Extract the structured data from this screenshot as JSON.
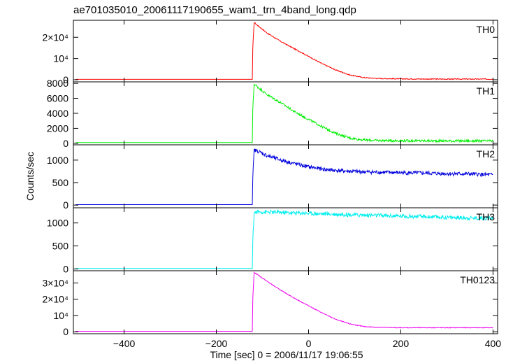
{
  "chart_data": {
    "type": "line",
    "title": "ae701035010_20061117190655_wam1_trn_4band_long.qdp",
    "xlabel": "Time [sec] 0 = 2006/11/17 19:06:55",
    "ylabel": "Counts/sec",
    "xlim": [
      -510,
      410
    ],
    "x_ticks": [
      -400,
      -200,
      0,
      200,
      400
    ],
    "x_tick_labels": [
      "−400",
      "−200",
      "0",
      "200",
      "400"
    ],
    "grid": false,
    "panels": [
      {
        "name": "TH0",
        "color": "#ff0000",
        "ylim": [
          -1000,
          28000
        ],
        "y_ticks": [
          0,
          10000,
          20000
        ],
        "y_tick_labels": [
          "0",
          "10⁴",
          "2×10⁴"
        ],
        "noise": 0.008,
        "x": [
          -505,
          -122,
          -121,
          -118,
          -110,
          -90,
          -60,
          -30,
          0,
          30,
          60,
          90,
          120,
          150,
          200,
          250,
          300,
          350,
          400
        ],
        "values": [
          200,
          200,
          15000,
          27000,
          25500,
          22000,
          18000,
          14500,
          11000,
          7500,
          4500,
          2200,
          1000,
          600,
          400,
          350,
          300,
          300,
          300
        ]
      },
      {
        "name": "TH1",
        "color": "#00ee00",
        "ylim": [
          -200,
          8200
        ],
        "y_ticks": [
          0,
          2000,
          4000,
          6000,
          8000
        ],
        "y_tick_labels": [
          "0",
          "2000",
          "4000",
          "6000",
          "8000"
        ],
        "noise": 0.02,
        "x": [
          -505,
          -122,
          -121,
          -118,
          -110,
          -90,
          -60,
          -30,
          0,
          30,
          60,
          90,
          120,
          150,
          200,
          250,
          300,
          350,
          400
        ],
        "values": [
          100,
          100,
          4500,
          7900,
          7500,
          6500,
          5400,
          4200,
          3200,
          2200,
          1300,
          700,
          450,
          380,
          350,
          330,
          320,
          320,
          310
        ]
      },
      {
        "name": "TH2",
        "color": "#0000dd",
        "ylim": [
          -60,
          1340
        ],
        "y_ticks": [
          0,
          500,
          1000
        ],
        "y_tick_labels": [
          "0",
          "500",
          "1000"
        ],
        "noise": 0.035,
        "x": [
          -505,
          -122,
          -121,
          -118,
          -110,
          -90,
          -60,
          -30,
          0,
          30,
          60,
          90,
          120,
          150,
          200,
          250,
          300,
          350,
          400
        ],
        "values": [
          10,
          10,
          600,
          1220,
          1200,
          1100,
          1000,
          920,
          850,
          800,
          770,
          750,
          740,
          730,
          720,
          710,
          700,
          690,
          670
        ]
      },
      {
        "name": "TH3",
        "color": "#00eeee",
        "ylim": [
          -40,
          1330
        ],
        "y_ticks": [
          0,
          500,
          1000
        ],
        "y_tick_labels": [
          "0",
          "500",
          "1000"
        ],
        "noise": 0.035,
        "x": [
          -505,
          -122,
          -121,
          -118,
          -110,
          -60,
          0,
          60,
          120,
          200,
          300,
          400
        ],
        "values": [
          10,
          10,
          600,
          1230,
          1240,
          1230,
          1210,
          1190,
          1170,
          1150,
          1120,
          1100
        ]
      },
      {
        "name": "TH0123",
        "color": "#ee00ee",
        "ylim": [
          -1200,
          37500
        ],
        "y_ticks": [
          0,
          10000,
          20000,
          30000
        ],
        "y_tick_labels": [
          "0",
          "10⁴",
          "2×10⁴",
          "3×10⁴"
        ],
        "noise": 0.006,
        "x": [
          -505,
          -122,
          -121,
          -118,
          -110,
          -90,
          -60,
          -30,
          0,
          30,
          60,
          90,
          120,
          150,
          200,
          250,
          300,
          350,
          400
        ],
        "values": [
          300,
          300,
          20000,
          36500,
          35000,
          31000,
          25500,
          20500,
          16000,
          11500,
          7500,
          4800,
          3200,
          2700,
          2500,
          2500,
          2500,
          2500,
          2500
        ]
      }
    ]
  }
}
